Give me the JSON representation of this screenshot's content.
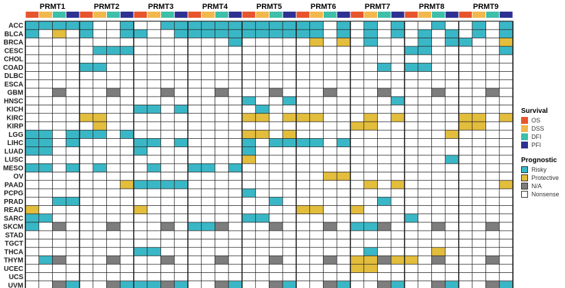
{
  "chart_data": {
    "type": "heatmap",
    "genes": [
      "PRMT1",
      "PRMT2",
      "PRMT3",
      "PRMT4",
      "PRMT5",
      "PRMT6",
      "PRMT7",
      "PRMT8",
      "PRMT9"
    ],
    "survival_types": [
      "OS",
      "DSS",
      "DFI",
      "PFI"
    ],
    "cancers": [
      "ACC",
      "BLCA",
      "BRCA",
      "CESC",
      "CHOL",
      "COAD",
      "DLBC",
      "ESCA",
      "GBM",
      "HNSC",
      "KICH",
      "KIRC",
      "KIRP",
      "LGG",
      "LIHC",
      "LUAD",
      "LUSC",
      "MESO",
      "OV",
      "PAAD",
      "PCPG",
      "PRAD",
      "READ",
      "SARC",
      "SKCM",
      "STAD",
      "TGCT",
      "THCA",
      "THYM",
      "UCEC",
      "UCS",
      "UVM"
    ],
    "cell_code_key": {
      "R": "Risky",
      "P": "Protective",
      "N": "N/A",
      ".": "Nonsense"
    },
    "rows": [
      "RRRR|R..R|..RR|RRRR|RRRR|RR.R|.R.R|..R.|.R.R",
      "R.P.|R..R|R..R|RRRR|RRRR|RR.R|.R.R|.R.R|.R.R",
      "....|....|....|...R|....|.P.P|.R..|.R.R|R..P",
      "....|.RRR|....|....|....|....|....|RR..|...R",
      "....|....|....|....|....|....|....|....|....",
      "....|RR..|....|....|....|....|..R.|RR..|....",
      "....|....|....|....|....|....|....|....|....",
      "....|....|....|....|....|....|....|....|....",
      "..N.|..N.|..N.|..N.|..N.|..N.|..N.|..N.|..N.",
      "....|....|....|....|R..R|....|...R|....|....",
      "....|....|RR.R|....|.R..|....|....|....|....",
      "....|PP..|....|....|PP.P|PP..|.P.P|....|PP.P",
      "....|.P..|....|....|....|....|PP..|....|PP..",
      "RR.R|RR.R|....|....|PP.P|....|....|...P|....",
      "RR.R|....|RR.R|....|R.RR|RR.R|....|....|....",
      "RR..|....|R...|....|R...|....|....|....|....",
      "....|....|....|....|P...|....|....|...R|....",
      "RR.R|.R..|.R..|RR.R|....|....|....|....|....",
      "....|....|....|....|....|..PP|....|....|....",
      "....|...P|RRRR|....|....|....|.P.P|....|...P",
      "....|....|....|....|R...|....|....|....|....",
      "..RR|....|....|....|..R.|....|..R.|....|....",
      "P...|....|P...|....|....|PP..|P...|....|....",
      "RR..|....|....|....|RR..|....|....|R...|....",
      "R.N.|..N.|..N.|RRN.|..N.|..N.|RRN.|..N.|..N.",
      "....|....|....|....|....|....|....|....|....",
      "....|....|....|....|....|....|....|....|....",
      "....|....|RR..|....|....|....|.R..|..P.|....",
      ".RN.|..N.|..N.|..N.|..N.|..N.|PPNP|P.N.|..N.",
      "....|....|....|....|....|....|PP..|....|....",
      "....|....|....|....|....|....|....|....|....",
      "..NR|..NR|RRNR|..NR|..NR|..NR|..NR|..NR|..NR"
    ],
    "legend": {
      "survival": {
        "title": "Survival",
        "items": [
          "OS",
          "DSS",
          "DFI",
          "PFI"
        ]
      },
      "prognostic": {
        "title": "Prognostic",
        "items": [
          "Risky",
          "Protective",
          "N/A",
          "Nonsense"
        ]
      }
    },
    "colors": {
      "OS": "#e8552d",
      "DSS": "#f2b84b",
      "DFI": "#3dbfa9",
      "PFI": "#2e3192",
      "Risky": "#3ab7c6",
      "Protective": "#e3bd3c",
      "N/A": "#7d7d7d",
      "Nonsense": "#ffffff"
    }
  }
}
